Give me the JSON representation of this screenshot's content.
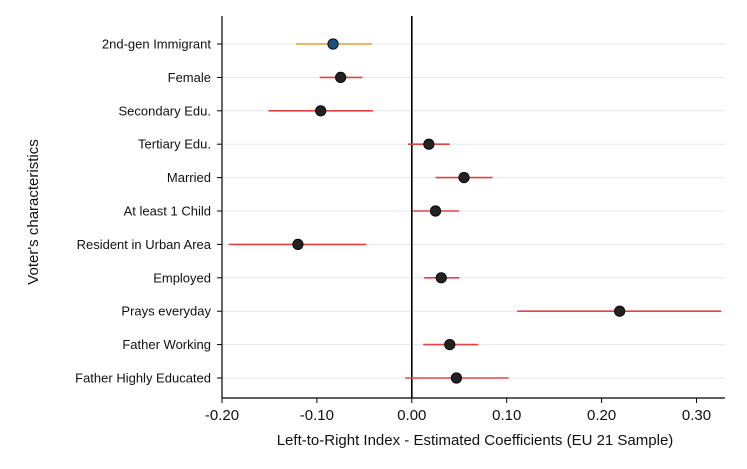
{
  "chart_data": {
    "type": "scatter",
    "subtype": "coefficient-plot",
    "title": "",
    "xlabel": "Left-to-Right Index - Estimated Coefficients (EU 21 Sample)",
    "ylabel": "Voter's characteristics",
    "xlim": [
      -0.2,
      0.33
    ],
    "x_ticks": [
      -0.2,
      -0.1,
      0.0,
      0.1,
      0.2,
      0.3
    ],
    "x_tick_labels": [
      "-0.20",
      "-0.10",
      "0.00",
      "0.10",
      "0.20",
      "0.30"
    ],
    "reference_line_x": 0.0,
    "grid": "horizontal",
    "legend": "none",
    "colors": {
      "highlight_point": "#1f4e79",
      "highlight_ci": "#e0a030",
      "point": "#222222",
      "ci": "#e84040",
      "grid": "#e4e8ec",
      "axis": "#000000"
    },
    "series": [
      {
        "label": "2nd-gen Immigrant",
        "estimate": -0.083,
        "ci_low": -0.122,
        "ci_high": -0.042,
        "highlight": true
      },
      {
        "label": "Female",
        "estimate": -0.075,
        "ci_low": -0.097,
        "ci_high": -0.052,
        "highlight": false
      },
      {
        "label": "Secondary Edu.",
        "estimate": -0.096,
        "ci_low": -0.151,
        "ci_high": -0.041,
        "highlight": false
      },
      {
        "label": "Tertiary Edu.",
        "estimate": 0.018,
        "ci_low": -0.004,
        "ci_high": 0.04,
        "highlight": false
      },
      {
        "label": "Married",
        "estimate": 0.055,
        "ci_low": 0.025,
        "ci_high": 0.085,
        "highlight": false
      },
      {
        "label": "At least 1 Child",
        "estimate": 0.025,
        "ci_low": 0.001,
        "ci_high": 0.05,
        "highlight": false
      },
      {
        "label": "Resident in Urban Area",
        "estimate": -0.12,
        "ci_low": -0.193,
        "ci_high": -0.048,
        "highlight": false
      },
      {
        "label": "Employed",
        "estimate": 0.031,
        "ci_low": 0.013,
        "ci_high": 0.05,
        "highlight": false
      },
      {
        "label": "Prays everyday",
        "estimate": 0.219,
        "ci_low": 0.111,
        "ci_high": 0.326,
        "highlight": false
      },
      {
        "label": "Father Working",
        "estimate": 0.04,
        "ci_low": 0.012,
        "ci_high": 0.07,
        "highlight": false
      },
      {
        "label": "Father Highly Educated",
        "estimate": 0.047,
        "ci_low": -0.007,
        "ci_high": 0.102,
        "highlight": false
      }
    ]
  }
}
